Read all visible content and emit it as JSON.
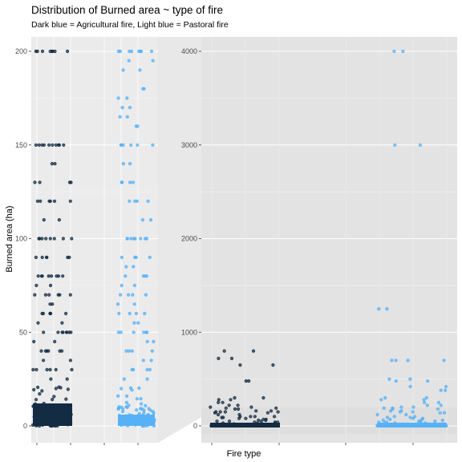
{
  "chart_data": {
    "type": "scatter",
    "title": "Distribution of Burned area ~ type of fire",
    "subtitle": "Dark blue = Agricultural fire, Light blue = Pastoral fire",
    "xlabel": "Fire type",
    "ylabel": "Burned area (ha)",
    "colors": {
      "agricultural": "#132b43",
      "pastoral": "#56b1f7"
    },
    "series_keys": [
      "Agricultural fire",
      "Pastoral fire"
    ],
    "zoom_panel": {
      "ylim": [
        0,
        200
      ],
      "yticks": [
        "0",
        "50",
        "100",
        "150",
        "200"
      ],
      "agricultural_values": [
        200,
        200,
        200,
        200,
        150,
        150,
        150,
        150,
        150,
        140,
        130,
        130,
        120,
        120,
        120,
        110,
        100,
        100,
        100,
        100,
        90,
        90,
        90,
        80,
        80,
        80,
        80,
        75,
        70,
        70,
        70,
        65,
        60,
        60,
        60,
        55,
        50,
        50,
        50,
        50,
        45,
        40,
        40,
        40,
        35,
        30,
        30,
        30,
        25,
        20,
        20,
        20,
        18,
        15,
        15,
        12,
        10,
        10,
        10,
        8,
        6,
        5,
        5,
        5,
        4,
        3,
        3,
        2,
        2,
        1,
        1,
        1,
        0.5,
        0.5
      ],
      "pastoral_values": [
        200,
        200,
        200,
        200,
        195,
        190,
        180,
        175,
        170,
        165,
        160,
        150,
        150,
        150,
        140,
        130,
        130,
        120,
        120,
        110,
        100,
        100,
        100,
        100,
        90,
        90,
        85,
        80,
        80,
        75,
        70,
        70,
        65,
        60,
        60,
        55,
        50,
        50,
        50,
        45,
        40,
        40,
        35,
        30,
        30,
        25,
        20,
        20,
        15,
        15,
        12,
        10,
        10,
        8,
        6,
        5,
        5,
        4,
        3,
        2,
        2,
        1,
        1,
        0.5
      ]
    },
    "full_panel": {
      "ylim": [
        0,
        4000
      ],
      "yticks": [
        "0",
        "1000",
        "2000",
        "3000",
        "4000"
      ],
      "agricultural_values": [
        800,
        720,
        650,
        480,
        300,
        280,
        250,
        220,
        200,
        190,
        180,
        160,
        150,
        150,
        140,
        120,
        100,
        100,
        90,
        80,
        70,
        60,
        50,
        40,
        30,
        20,
        10,
        5,
        2,
        1
      ],
      "pastoral_values": [
        4000,
        3000,
        1250,
        700,
        700,
        500,
        480,
        420,
        380,
        300,
        280,
        250,
        220,
        200,
        190,
        180,
        160,
        150,
        140,
        120,
        100,
        90,
        80,
        70,
        60,
        50,
        40,
        30,
        20,
        10,
        5,
        2,
        1
      ]
    }
  }
}
